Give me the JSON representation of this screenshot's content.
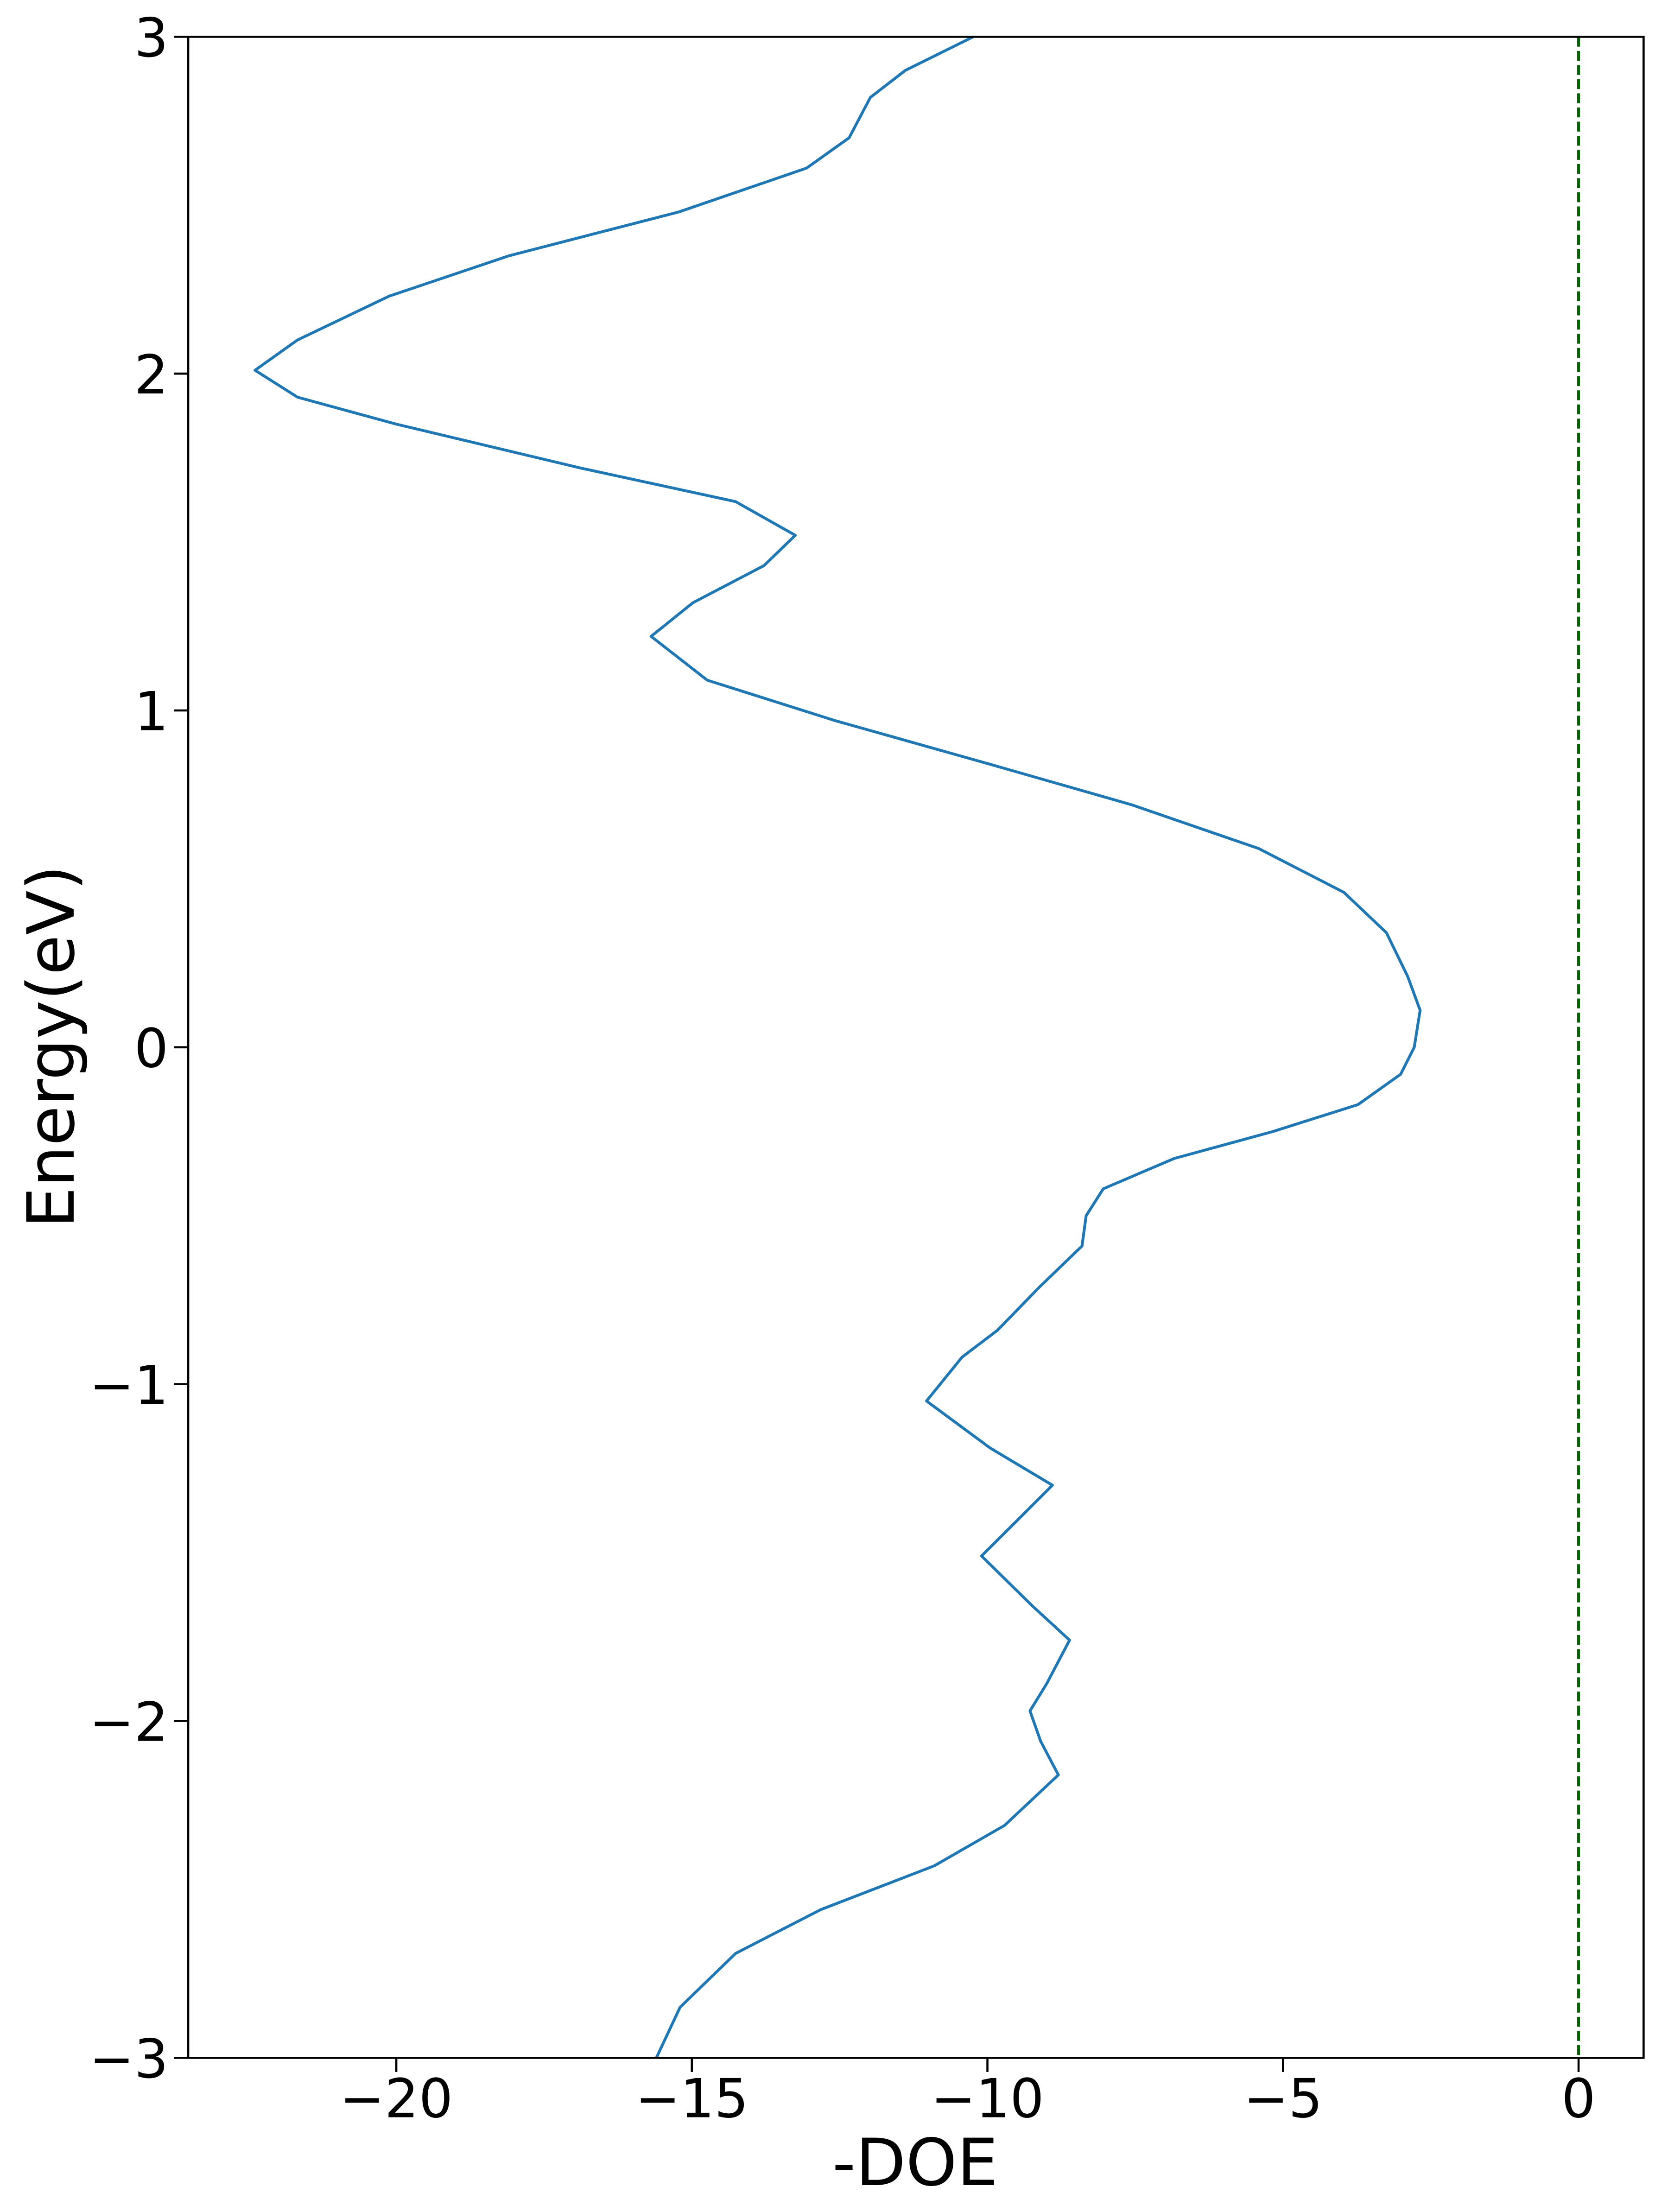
{
  "chart_data": {
    "type": "line",
    "x_label": "-DOE",
    "y_label": "Energy(eV)",
    "xlim": [
      -23.52,
      1.1
    ],
    "ylim": [
      -3,
      3
    ],
    "xticks": [
      {
        "value": -20,
        "label": "−20"
      },
      {
        "value": -15,
        "label": "−15"
      },
      {
        "value": -10,
        "label": "−10"
      },
      {
        "value": -5,
        "label": "−5"
      },
      0
    ],
    "yticks": [
      {
        "value": -3,
        "label": "−3"
      },
      {
        "value": -2,
        "label": "−2"
      },
      {
        "value": -1,
        "label": "−1"
      },
      0,
      1,
      2,
      3
    ],
    "color": "#1f77b4",
    "vline": 0,
    "vline_color": "#006400",
    "x": [
      -15.6,
      -15.2,
      -14.26,
      -12.82,
      -10.9,
      -9.71,
      -8.8,
      -9.1,
      -9.28,
      -9.0,
      -8.61,
      -9.23,
      -10.1,
      -9.47,
      -8.9,
      -9.95,
      -11.03,
      -10.43,
      -9.83,
      -9.11,
      -8.4,
      -8.33,
      -8.04,
      -6.84,
      -5.17,
      -3.73,
      -3.01,
      -2.78,
      -2.68,
      -2.89,
      -3.25,
      -3.97,
      -5.41,
      -7.56,
      -9.95,
      -12.58,
      -14.74,
      -15.69,
      -14.98,
      -13.78,
      -13.25,
      -14.26,
      -16.89,
      -20.0,
      -21.67,
      -22.39,
      -21.67,
      -20.12,
      -18.09,
      -15.22,
      -13.06,
      -12.34,
      -11.98,
      -11.39,
      -10.24
    ],
    "values": [
      -3.0,
      -2.85,
      -2.69,
      -2.56,
      -2.43,
      -2.31,
      -2.16,
      -2.06,
      -1.97,
      -1.89,
      -1.76,
      -1.66,
      -1.51,
      -1.4,
      -1.3,
      -1.19,
      -1.05,
      -0.92,
      -0.84,
      -0.71,
      -0.59,
      -0.5,
      -0.42,
      -0.33,
      -0.25,
      -0.17,
      -0.08,
      0.0,
      0.11,
      0.21,
      0.34,
      0.46,
      0.59,
      0.72,
      0.84,
      0.97,
      1.09,
      1.22,
      1.32,
      1.43,
      1.52,
      1.62,
      1.72,
      1.85,
      1.93,
      2.01,
      2.1,
      2.23,
      2.35,
      2.48,
      2.61,
      2.7,
      2.82,
      2.9,
      3.0
    ]
  }
}
